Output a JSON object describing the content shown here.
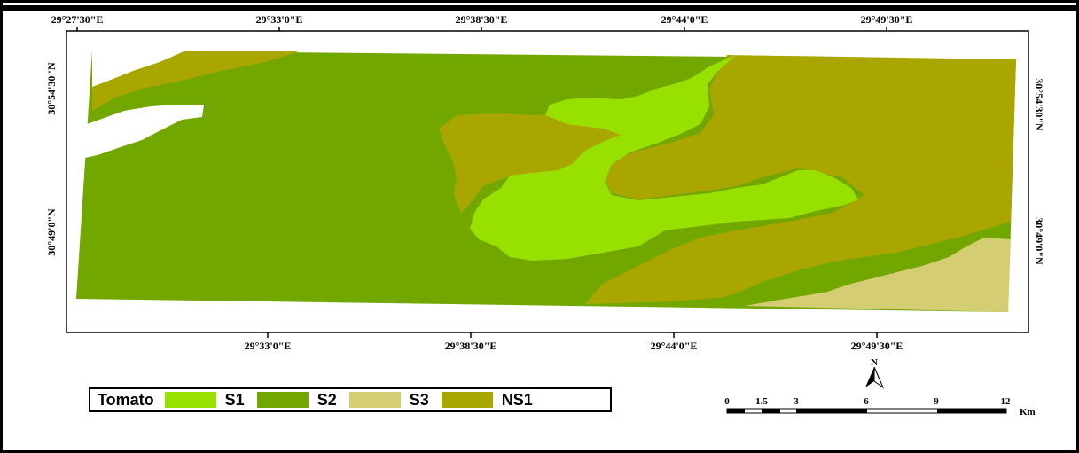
{
  "map": {
    "top_lon_labels": [
      "29°27'30\"E",
      "29°33'0\"E",
      "29°38'30\"E",
      "29°44'0\"E",
      "29°49'30\"E"
    ],
    "bottom_lon_labels": [
      "29°33'0\"E",
      "29°38'30\"E",
      "29°44'0\"E",
      "29°49'30\"E"
    ],
    "left_lat_labels": [
      "30°54'30\"N",
      "30°49'0\"N"
    ],
    "right_lat_labels": [
      "30°54'30\"N",
      "30°49'0\"N"
    ],
    "north_arrow_label": "N"
  },
  "legend": {
    "title": "Tomato",
    "items": [
      {
        "label": "S1",
        "color": "#98e000"
      },
      {
        "label": "S2",
        "color": "#72a700"
      },
      {
        "label": "S3",
        "color": "#d4cd72"
      },
      {
        "label": "NS1",
        "color": "#aaa600"
      }
    ]
  },
  "scale_bar": {
    "ticks": [
      "0",
      "1.5",
      "3",
      "6",
      "9",
      "12"
    ],
    "unit": "Km"
  }
}
